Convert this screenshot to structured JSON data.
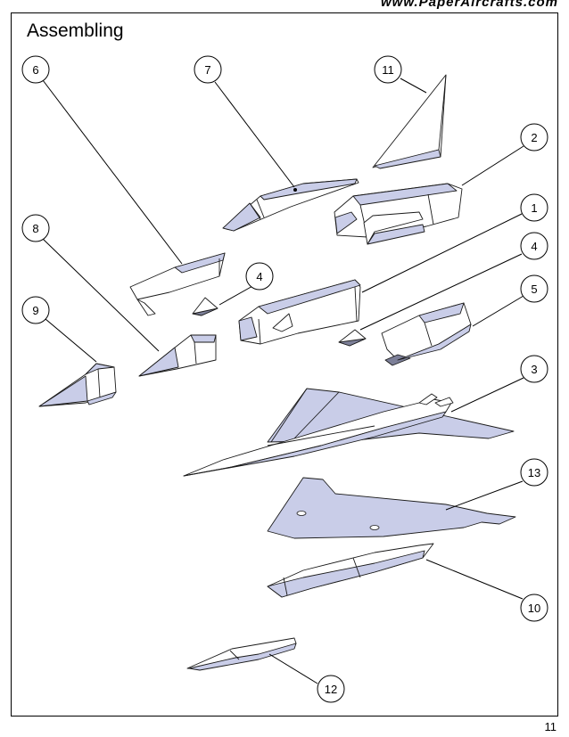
{
  "header": {
    "site_url": "www.PaperAircrafts.com"
  },
  "page": {
    "title": "Assembling",
    "page_number": "11"
  },
  "callouts": [
    "1",
    "2",
    "3",
    "4",
    "4",
    "5",
    "6",
    "7",
    "8",
    "9",
    "10",
    "11",
    "12",
    "13"
  ],
  "colors": {
    "part_fill": "#ffffff",
    "part_shade": "#c9cde8",
    "part_dark": "#7c7f98",
    "line": "#1a1a1a"
  }
}
